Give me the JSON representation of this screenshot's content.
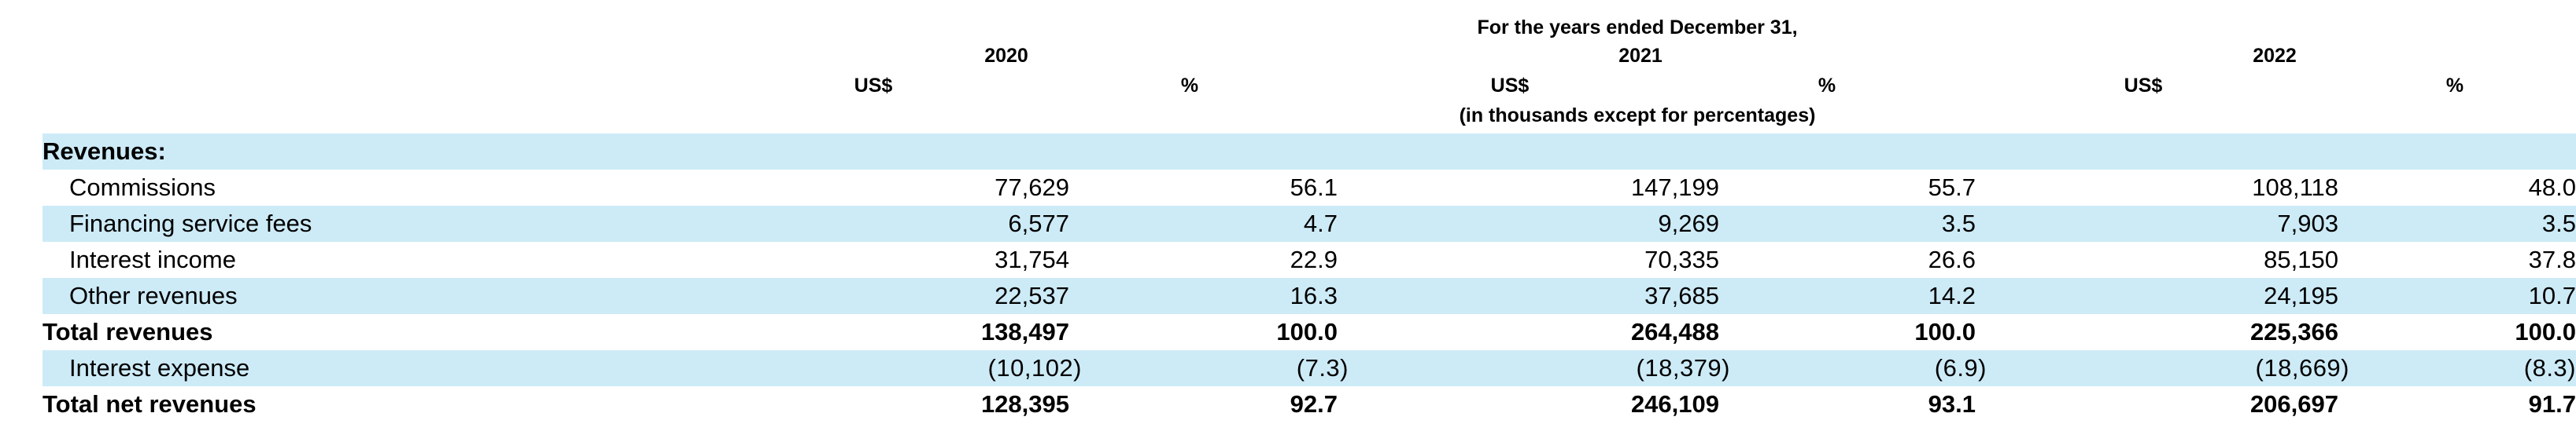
{
  "header": {
    "period_title": "For the years ended December 31,",
    "years": [
      "2020",
      "2021",
      "2022"
    ],
    "unit_labels": [
      "US$",
      "%",
      "US$",
      "%",
      "US$",
      "%"
    ],
    "note": "(in thousands except for percentages)"
  },
  "table": {
    "section_label": "Revenues:",
    "rows": [
      {
        "label": "Commissions",
        "values": [
          "77,629",
          "56.1",
          "147,199",
          "55.7",
          "108,118",
          "48.0"
        ]
      },
      {
        "label": "Financing service fees",
        "values": [
          "6,577",
          "4.7",
          "9,269",
          "3.5",
          "7,903",
          "3.5"
        ]
      },
      {
        "label": "Interest income",
        "values": [
          "31,754",
          "22.9",
          "70,335",
          "26.6",
          "85,150",
          "37.8"
        ]
      },
      {
        "label": "Other revenues",
        "values": [
          "22,537",
          "16.3",
          "37,685",
          "14.2",
          "24,195",
          "10.7"
        ]
      },
      {
        "label": "Total revenues",
        "values": [
          "138,497",
          "100.0",
          "264,488",
          "100.0",
          "225,366",
          "100.0"
        ]
      },
      {
        "label": "Interest expense",
        "values": [
          "(10,102)",
          "(7.3)",
          "(18,379)",
          "(6.9)",
          "(18,669)",
          "(8.3)"
        ]
      },
      {
        "label": "Total net revenues",
        "values": [
          "128,395",
          "92.7",
          "246,109",
          "93.1",
          "206,697",
          "91.7"
        ]
      }
    ]
  }
}
